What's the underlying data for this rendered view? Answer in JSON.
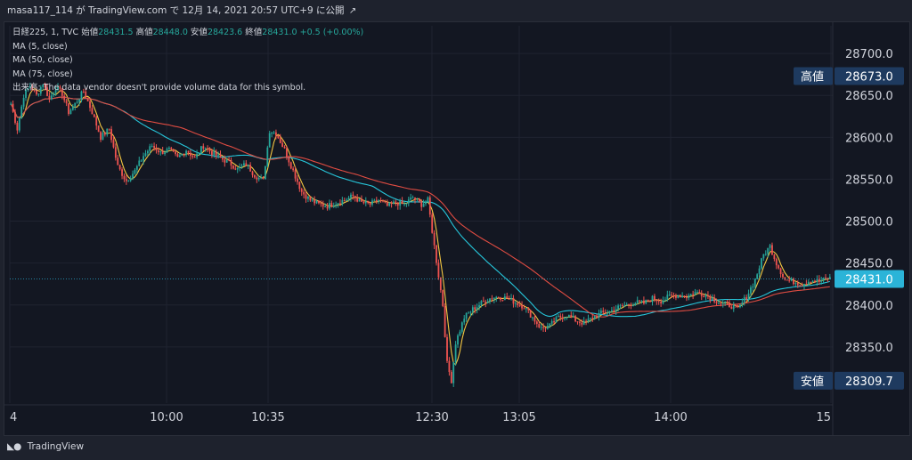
{
  "header": {
    "caption": "masa117_114 が TradingView.com で 12月 14, 2021 20:57 UTC+9 に公開"
  },
  "legend": {
    "symbol": "日経225, 1, TVC",
    "open_label": "始値",
    "open": "28431.5",
    "high_label": "高値",
    "high": "28448.0",
    "low_label": "安値",
    "low": "28423.6",
    "close_label": "終値",
    "close": "28431.0",
    "change": "+0.5 (+0.00%)",
    "ma5": "MA (5, close)",
    "ma50": "MA (50, close)",
    "ma75": "MA (75, close)",
    "volume_note": "出来高: The data vendor doesn't provide volume data for this symbol."
  },
  "footer": {
    "brand": "TradingView"
  },
  "chart_data": {
    "type": "candlestick",
    "ylim": [
      28283,
      28733
    ],
    "y_ticks": [
      28350,
      28400,
      28450,
      28500,
      28550,
      28600,
      28650,
      28700
    ],
    "y_tick_labels": [
      "28350.0",
      "28400.0",
      "28450.0",
      "28500.0",
      "28550.0",
      "28600.0",
      "28650.0",
      "28700.0"
    ],
    "x_tick_labels": [
      "4",
      "10:00",
      "10:35",
      "12:30",
      "13:05",
      "14:00",
      "15"
    ],
    "price_labels": [
      {
        "label": "高値",
        "value": 28673.0,
        "text": "28673.0",
        "kind": "high"
      },
      {
        "label": "",
        "value": 28431.0,
        "text": "28431.0",
        "kind": "last"
      },
      {
        "label": "安値",
        "value": 28309.7,
        "text": "28309.7",
        "kind": "low"
      }
    ],
    "price_path": [
      [
        0,
        28640
      ],
      [
        3,
        28610
      ],
      [
        6,
        28650
      ],
      [
        9,
        28662
      ],
      [
        12,
        28650
      ],
      [
        15,
        28665
      ],
      [
        18,
        28645
      ],
      [
        21,
        28660
      ],
      [
        24,
        28652
      ],
      [
        27,
        28630
      ],
      [
        30,
        28640
      ],
      [
        34,
        28655
      ],
      [
        38,
        28630
      ],
      [
        42,
        28600
      ],
      [
        46,
        28610
      ],
      [
        50,
        28565
      ],
      [
        54,
        28548
      ],
      [
        58,
        28560
      ],
      [
        62,
        28578
      ],
      [
        66,
        28590
      ],
      [
        70,
        28582
      ],
      [
        74,
        28585
      ],
      [
        78,
        28575
      ],
      [
        82,
        28585
      ],
      [
        86,
        28575
      ],
      [
        90,
        28590
      ],
      [
        94,
        28582
      ],
      [
        98,
        28575
      ],
      [
        102,
        28570
      ],
      [
        106,
        28562
      ],
      [
        110,
        28568
      ],
      [
        114,
        28555
      ],
      [
        118,
        28548
      ],
      [
        121,
        28608
      ],
      [
        124,
        28605
      ],
      [
        128,
        28585
      ],
      [
        132,
        28560
      ],
      [
        136,
        28535
      ],
      [
        140,
        28525
      ],
      [
        144,
        28520
      ],
      [
        148,
        28518
      ],
      [
        152,
        28522
      ],
      [
        156,
        28525
      ],
      [
        160,
        28530
      ],
      [
        164,
        28522
      ],
      [
        168,
        28520
      ],
      [
        172,
        28525
      ],
      [
        176,
        28518
      ],
      [
        180,
        28522
      ],
      [
        184,
        28520
      ],
      [
        188,
        28528
      ],
      [
        192,
        28520
      ],
      [
        195,
        28525
      ],
      [
        198,
        28470
      ],
      [
        202,
        28400
      ],
      [
        204,
        28330
      ],
      [
        206,
        28310
      ],
      [
        208,
        28355
      ],
      [
        212,
        28385
      ],
      [
        216,
        28395
      ],
      [
        220,
        28402
      ],
      [
        224,
        28408
      ],
      [
        228,
        28410
      ],
      [
        232,
        28408
      ],
      [
        236,
        28403
      ],
      [
        240,
        28398
      ],
      [
        244,
        28385
      ],
      [
        248,
        28372
      ],
      [
        252,
        28375
      ],
      [
        256,
        28385
      ],
      [
        260,
        28388
      ],
      [
        264,
        28382
      ],
      [
        268,
        28378
      ],
      [
        272,
        28385
      ],
      [
        276,
        28390
      ],
      [
        280,
        28392
      ],
      [
        284,
        28397
      ],
      [
        288,
        28400
      ],
      [
        292,
        28403
      ],
      [
        296,
        28402
      ],
      [
        300,
        28408
      ],
      [
        304,
        28405
      ],
      [
        308,
        28410
      ],
      [
        312,
        28412
      ],
      [
        316,
        28410
      ],
      [
        320,
        28415
      ],
      [
        324,
        28413
      ],
      [
        328,
        28408
      ],
      [
        332,
        28402
      ],
      [
        336,
        28400
      ],
      [
        340,
        28395
      ],
      [
        344,
        28410
      ],
      [
        348,
        28430
      ],
      [
        352,
        28460
      ],
      [
        355,
        28470
      ],
      [
        358,
        28450
      ],
      [
        362,
        28430
      ],
      [
        366,
        28428
      ],
      [
        370,
        28425
      ],
      [
        374,
        28430
      ],
      [
        378,
        28428
      ],
      [
        382,
        28432
      ]
    ],
    "ma_series": [
      {
        "name": "MA (5, close)",
        "color": "#f5c842",
        "smoothing": 5
      },
      {
        "name": "MA (50, close)",
        "color": "#26c6da",
        "smoothing": 50
      },
      {
        "name": "MA (75, close)",
        "color": "#e04c42",
        "smoothing": 75
      }
    ],
    "colors": {
      "up": "#26a69a",
      "down": "#ef5350",
      "grid": "#1f2330",
      "axis_text": "#d1d4dc",
      "label_bg": "#1e3a5f",
      "last_bg": "#2bb4d8",
      "last_line": "#2bb4d8"
    }
  }
}
